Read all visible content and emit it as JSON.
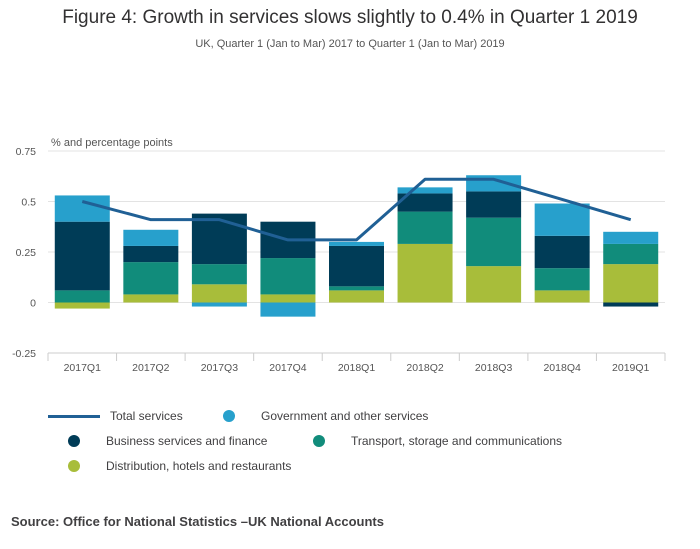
{
  "chart_data": {
    "type": "bar",
    "title": "Figure 4: Growth in services slows slightly to 0.4% in Quarter 1 2019",
    "subtitle": "UK, Quarter 1 (Jan to Mar) 2017 to Quarter 1 (Jan to Mar) 2019",
    "ylabel": "% and percentage points",
    "xlabel": "",
    "ylim": [
      -0.25,
      0.75
    ],
    "yticks": [
      0.75,
      0.5,
      0.25,
      0,
      -0.25
    ],
    "ytick_labels": [
      "0.75",
      "0.5",
      "0.25",
      "0",
      "-0.25"
    ],
    "grid": true,
    "categories": [
      "2017Q1",
      "2017Q2",
      "2017Q3",
      "2017Q4",
      "2018Q1",
      "2018Q2",
      "2018Q3",
      "2018Q4",
      "2019Q1"
    ],
    "series": [
      {
        "name": "Distribution, hotels and restaurants",
        "kind": "bar",
        "color": "#a8bd3a",
        "values": [
          -0.03,
          0.04,
          0.09,
          0.04,
          0.06,
          0.29,
          0.18,
          0.06,
          0.19
        ]
      },
      {
        "name": "Transport, storage and communications",
        "kind": "bar",
        "color": "#118c7b",
        "values": [
          0.06,
          0.16,
          0.1,
          0.18,
          0.02,
          0.16,
          0.24,
          0.11,
          0.1
        ]
      },
      {
        "name": "Business services and finance",
        "kind": "bar",
        "color": "#003c57",
        "values": [
          0.34,
          0.08,
          0.25,
          0.18,
          0.2,
          0.09,
          0.13,
          0.16,
          -0.02
        ]
      },
      {
        "name": "Government and other services",
        "kind": "bar",
        "color": "#27a0cc",
        "values": [
          0.13,
          0.08,
          -0.02,
          -0.07,
          0.02,
          0.03,
          0.08,
          0.16,
          0.06
        ]
      },
      {
        "name": "Total services",
        "kind": "line",
        "color": "#206095",
        "values": [
          0.5,
          0.41,
          0.41,
          0.31,
          0.31,
          0.61,
          0.61,
          0.51,
          0.41
        ]
      }
    ],
    "legend": {
      "placement": "bottom",
      "order": [
        "Total services",
        "Government and other services",
        "Business services and finance",
        "Transport, storage and communications",
        "Distribution, hotels and restaurants"
      ]
    }
  },
  "source": "Source: Office for National Statistics –UK National Accounts"
}
